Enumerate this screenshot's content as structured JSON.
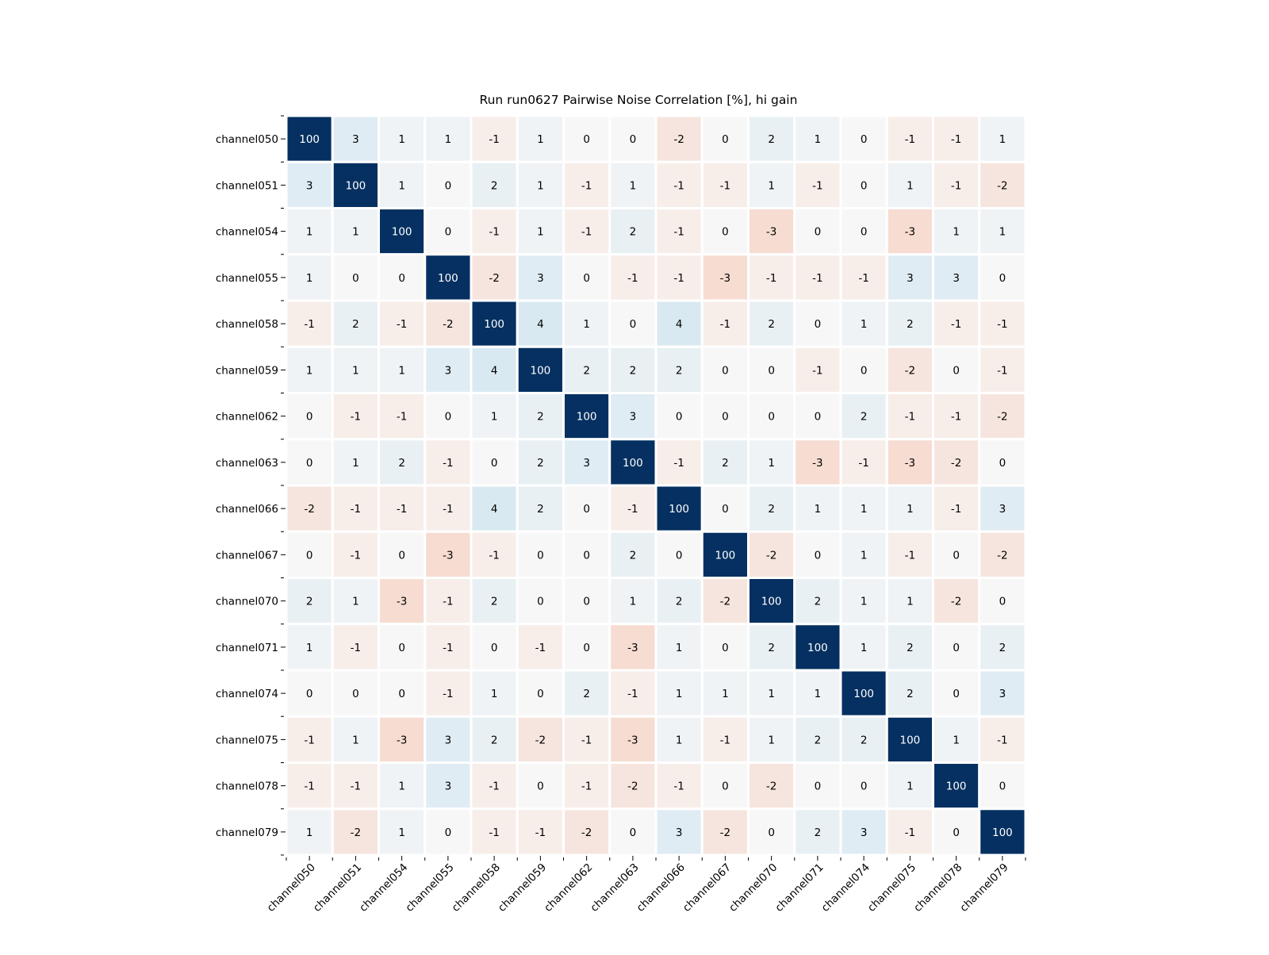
{
  "chart_data": {
    "type": "heatmap",
    "title": "Run run0627 Pairwise Noise Correlation [%], hi gain",
    "xlabel": "",
    "ylabel": "",
    "row_labels": [
      "channel050",
      "channel051",
      "channel054",
      "channel055",
      "channel058",
      "channel059",
      "channel062",
      "channel063",
      "channel066",
      "channel067",
      "channel070",
      "channel071",
      "channel074",
      "channel075",
      "channel078",
      "channel079"
    ],
    "col_labels": [
      "channel050",
      "channel051",
      "channel054",
      "channel055",
      "channel058",
      "channel059",
      "channel062",
      "channel063",
      "channel066",
      "channel067",
      "channel070",
      "channel071",
      "channel074",
      "channel075",
      "channel078",
      "channel079"
    ],
    "values": [
      [
        100,
        3,
        1,
        1,
        -1,
        1,
        0,
        0,
        -2,
        0,
        2,
        1,
        0,
        -1,
        -1,
        1
      ],
      [
        3,
        100,
        1,
        0,
        2,
        1,
        -1,
        1,
        -1,
        -1,
        1,
        -1,
        0,
        1,
        -1,
        -2
      ],
      [
        1,
        1,
        100,
        0,
        -1,
        1,
        -1,
        2,
        -1,
        0,
        -3,
        0,
        0,
        -3,
        1,
        1
      ],
      [
        1,
        0,
        0,
        100,
        -2,
        3,
        0,
        -1,
        -1,
        -3,
        -1,
        -1,
        -1,
        3,
        3,
        0
      ],
      [
        -1,
        2,
        -1,
        -2,
        100,
        4,
        1,
        0,
        4,
        -1,
        2,
        0,
        1,
        2,
        -1,
        -1
      ],
      [
        1,
        1,
        1,
        3,
        4,
        100,
        2,
        2,
        2,
        0,
        0,
        -1,
        0,
        -2,
        0,
        -1
      ],
      [
        0,
        -1,
        -1,
        0,
        1,
        2,
        100,
        3,
        0,
        0,
        0,
        0,
        2,
        -1,
        -1,
        -2
      ],
      [
        0,
        1,
        2,
        -1,
        0,
        2,
        3,
        100,
        -1,
        2,
        1,
        -3,
        -1,
        -3,
        -2,
        0
      ],
      [
        -2,
        -1,
        -1,
        -1,
        4,
        2,
        0,
        -1,
        100,
        0,
        2,
        1,
        1,
        1,
        -1,
        3
      ],
      [
        0,
        -1,
        0,
        -3,
        -1,
        0,
        0,
        2,
        0,
        100,
        -2,
        0,
        1,
        -1,
        0,
        -2
      ],
      [
        2,
        1,
        -3,
        -1,
        2,
        0,
        0,
        1,
        2,
        -2,
        100,
        2,
        1,
        1,
        -2,
        0
      ],
      [
        1,
        -1,
        0,
        -1,
        0,
        -1,
        0,
        -3,
        1,
        0,
        2,
        100,
        1,
        2,
        0,
        2
      ],
      [
        0,
        0,
        0,
        -1,
        1,
        0,
        2,
        -1,
        1,
        1,
        1,
        1,
        100,
        2,
        0,
        3
      ],
      [
        -1,
        1,
        -3,
        3,
        2,
        -2,
        -1,
        -3,
        1,
        -1,
        1,
        2,
        2,
        100,
        1,
        -1
      ],
      [
        -1,
        -1,
        1,
        3,
        -1,
        0,
        -1,
        -2,
        -1,
        0,
        -2,
        0,
        0,
        1,
        100,
        0
      ],
      [
        1,
        -2,
        1,
        0,
        -1,
        -1,
        -2,
        0,
        3,
        -2,
        0,
        2,
        3,
        -1,
        0,
        100
      ]
    ],
    "colormap": "diverging blue (positive) / red (negative), centered at 0",
    "colors": {
      "max_positive": "#053061",
      "neutral": "#f7f7f7",
      "negative_tint": "#f4a582",
      "cell_separator": "#ffffff",
      "high_value_text": "#ffffff",
      "low_value_text": "#000000"
    },
    "legend": "none",
    "grid": false
  }
}
